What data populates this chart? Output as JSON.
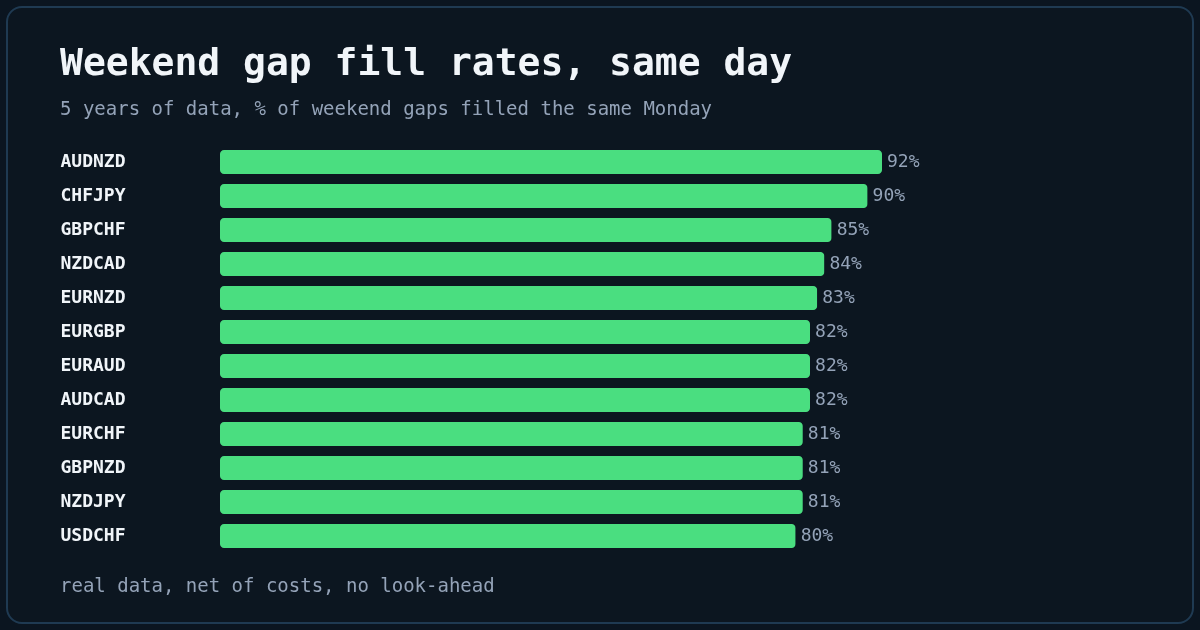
{
  "chart_data": {
    "type": "bar",
    "orientation": "horizontal",
    "title": "Weekend gap fill rates, same day",
    "subtitle": "5 years of data, % of weekend gaps filled the same Monday",
    "categories": [
      "AUDNZD",
      "CHFJPY",
      "GBPCHF",
      "NZDCAD",
      "EURNZD",
      "EURGBP",
      "EURAUD",
      "AUDCAD",
      "EURCHF",
      "GBPNZD",
      "NZDJPY",
      "USDCHF"
    ],
    "values": [
      92,
      90,
      85,
      84,
      83,
      82,
      82,
      82,
      81,
      81,
      81,
      80
    ],
    "value_labels": [
      "92%",
      "90%",
      "85%",
      "84%",
      "83%",
      "82%",
      "82%",
      "82%",
      "81%",
      "81%",
      "81%",
      "80%"
    ],
    "color": "#4ade80",
    "annotations": [
      "real data, net of costs, no look-ahead"
    ]
  }
}
